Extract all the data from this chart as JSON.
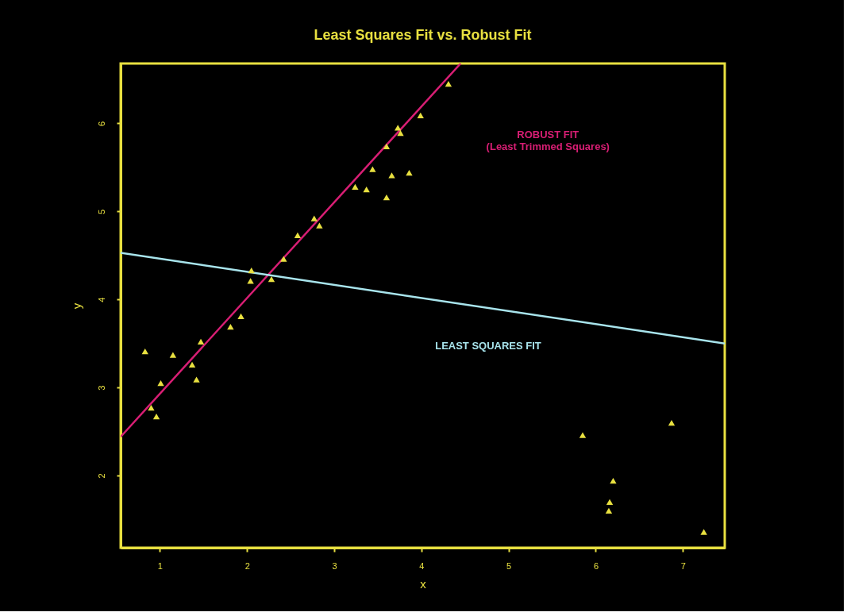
{
  "chart_data": {
    "type": "scatter",
    "title": "Least Squares Fit vs. Robust Fit",
    "xlabel": "x",
    "ylabel": "y",
    "xlim": [
      0.55,
      7.48
    ],
    "ylim": [
      1.18,
      6.68
    ],
    "xticks": [
      1,
      2,
      3,
      4,
      5,
      6,
      7
    ],
    "yticks": [
      2,
      3,
      4,
      5,
      6
    ],
    "grid": false,
    "series": [
      {
        "marker": "triangle",
        "color": "#e8e040",
        "x": [
          0.83,
          0.9,
          0.96,
          1.01,
          1.15,
          1.37,
          1.42,
          1.47,
          1.81,
          1.93,
          2.04,
          2.05,
          2.28,
          2.42,
          2.58,
          2.77,
          2.83,
          3.24,
          3.37,
          3.44,
          3.6,
          3.6,
          3.66,
          3.73,
          3.76,
          3.86,
          3.99,
          4.31,
          5.85,
          6.2,
          6.16,
          6.15,
          6.87,
          7.24
        ],
        "values": [
          3.41,
          2.77,
          2.67,
          3.05,
          3.37,
          3.26,
          3.09,
          3.52,
          3.69,
          3.81,
          4.21,
          4.33,
          4.23,
          4.46,
          4.73,
          4.92,
          4.84,
          5.28,
          5.25,
          5.48,
          5.16,
          5.74,
          5.41,
          5.95,
          5.89,
          5.44,
          6.09,
          6.45,
          2.46,
          1.94,
          1.7,
          1.6,
          2.6,
          1.36
        ]
      },
      {
        "type": "line",
        "name": "ROBUST FIT\n(Least Trimmed Squares)",
        "line_style": "solid",
        "marker": "none",
        "color": "#d81e74",
        "x": [
          0.55,
          4.45
        ],
        "values": [
          2.44,
          6.68
        ]
      },
      {
        "type": "line",
        "name": "LEAST SQUARES FIT",
        "line_style": "solid",
        "marker": "none",
        "color": "#a8e4ec",
        "x": [
          0.55,
          7.48
        ],
        "values": [
          4.53,
          3.5
        ]
      }
    ]
  }
}
